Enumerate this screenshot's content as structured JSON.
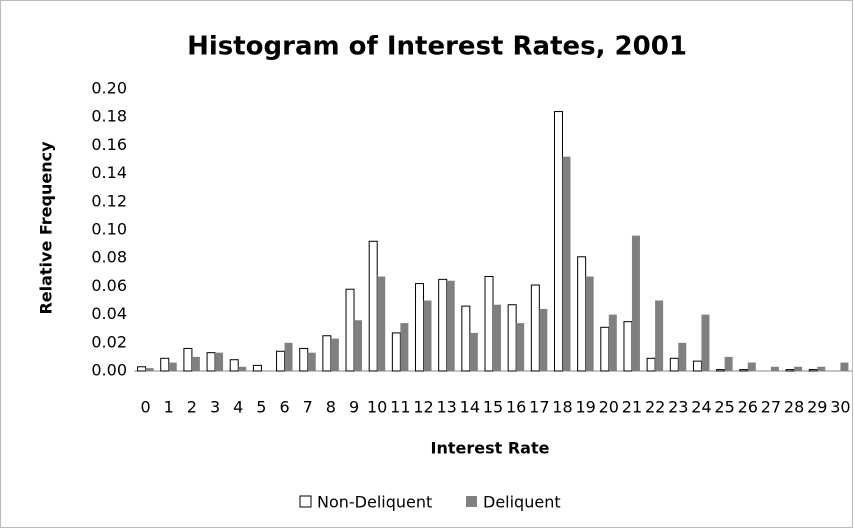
{
  "chart_data": {
    "type": "bar",
    "title": "Histogram of Interest Rates, 2001",
    "x_label": "Interest Rate",
    "y_label": "Relative Frequency",
    "categories": [
      "0",
      "1",
      "2",
      "3",
      "4",
      "5",
      "6",
      "7",
      "8",
      "9",
      "10",
      "11",
      "12",
      "13",
      "14",
      "15",
      "16",
      "17",
      "18",
      "19",
      "20",
      "21",
      "22",
      "23",
      "24",
      "25",
      "26",
      "27",
      "28",
      "29",
      "30"
    ],
    "series": [
      {
        "name": "Non-Deliquent",
        "color": "#ffffff",
        "values": [
          0.003,
          0.009,
          0.016,
          0.013,
          0.008,
          0.004,
          0.014,
          0.016,
          0.025,
          0.058,
          0.092,
          0.027,
          0.062,
          0.065,
          0.046,
          0.067,
          0.047,
          0.061,
          0.184,
          0.081,
          0.031,
          0.035,
          0.009,
          0.009,
          0.007,
          0.001,
          0.001,
          0,
          0.001,
          0.001,
          0
        ]
      },
      {
        "name": "Deliquent",
        "color": "#808080",
        "values": [
          0.002,
          0.006,
          0.01,
          0.013,
          0.003,
          0,
          0.02,
          0.013,
          0.023,
          0.036,
          0.067,
          0.034,
          0.05,
          0.064,
          0.027,
          0.047,
          0.034,
          0.044,
          0.152,
          0.067,
          0.04,
          0.096,
          0.05,
          0.02,
          0.04,
          0.01,
          0.006,
          0.003,
          0.003,
          0.003,
          0.006
        ]
      }
    ],
    "ylim": [
      0,
      0.2
    ],
    "yticks": [
      {
        "value": 0,
        "label": "0.00"
      },
      {
        "value": 0.02,
        "label": "0.02"
      },
      {
        "value": 0.04,
        "label": "0.04"
      },
      {
        "value": 0.06,
        "label": "0.06"
      },
      {
        "value": 0.08,
        "label": "0.08"
      },
      {
        "value": 0.1,
        "label": "0.10"
      },
      {
        "value": 0.12,
        "label": "0.12"
      },
      {
        "value": 0.14,
        "label": "0.14"
      },
      {
        "value": 0.16,
        "label": "0.16"
      },
      {
        "value": 0.18,
        "label": "0.18"
      },
      {
        "value": 0.2,
        "label": "0.20"
      }
    ],
    "grid": false,
    "legend": "bottom"
  }
}
